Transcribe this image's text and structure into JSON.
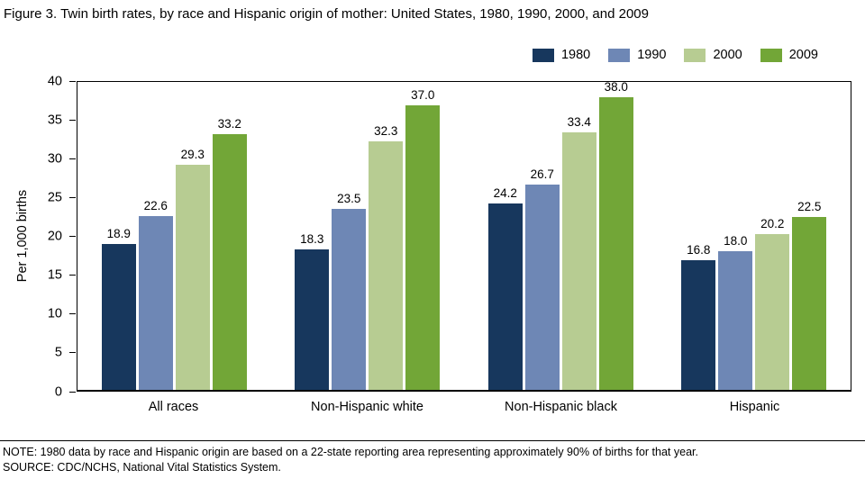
{
  "title": "Figure 3. Twin birth rates, by race and Hispanic origin of mother: United States, 1980, 1990, 2000, and 2009",
  "note": "NOTE: 1980 data by race and Hispanic origin are based on a 22-state reporting area representing approximately 90% of births for that year.",
  "source": "SOURCE: CDC/NCHS, National Vital Statistics System.",
  "chart_data": {
    "type": "bar",
    "title": "Figure 3. Twin birth rates, by race and Hispanic origin of mother: United States, 1980, 1990, 2000, and 2009",
    "xlabel": "",
    "ylabel": "Per 1,000 births",
    "ylim": [
      0,
      40
    ],
    "ytick_step": 5,
    "grid": false,
    "legend_position": "top-right",
    "categories": [
      "All races",
      "Non-Hispanic white",
      "Non-Hispanic black",
      "Hispanic"
    ],
    "series": [
      {
        "name": "1980",
        "color": "#17375d",
        "values": [
          18.9,
          18.3,
          24.2,
          16.8
        ]
      },
      {
        "name": "1990",
        "color": "#6e87b5",
        "values": [
          22.6,
          23.5,
          26.7,
          18.0
        ]
      },
      {
        "name": "2000",
        "color": "#b7cc92",
        "values": [
          29.3,
          32.3,
          33.4,
          20.2
        ]
      },
      {
        "name": "2009",
        "color": "#72a637",
        "values": [
          33.2,
          37.0,
          38.0,
          22.5
        ]
      }
    ]
  }
}
